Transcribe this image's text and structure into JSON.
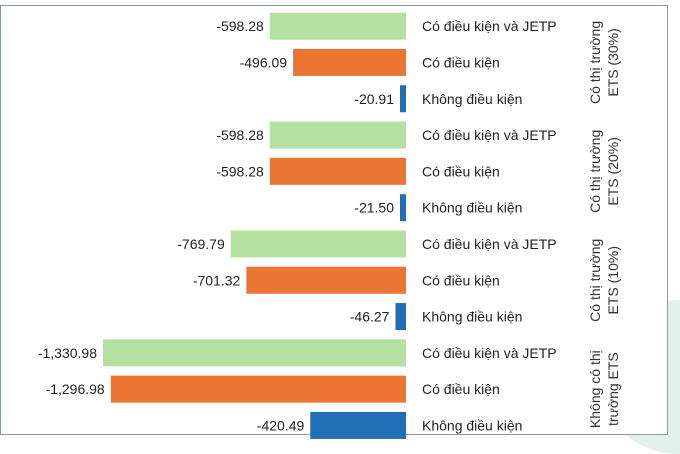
{
  "chart_data": {
    "type": "bar",
    "orientation": "horizontal",
    "title": "",
    "xlim": [
      -1330.98,
      0
    ],
    "colors": {
      "Có điều kiện và JETP": "#b4e0a0",
      "Có điều kiện": "#ec7533",
      "Không điều kiện": "#1f6fb5"
    },
    "groups": [
      {
        "label": [
          "Có thị trường",
          "ETS (30%)"
        ],
        "bars": [
          {
            "category": "Có điều kiện và JETP",
            "value": -598.28,
            "label": "-598.28"
          },
          {
            "category": "Có điều kiện",
            "value": -496.09,
            "label": "-496.09"
          },
          {
            "category": "Không điều kiện",
            "value": -20.91,
            "label": "-20.91"
          }
        ]
      },
      {
        "label": [
          "Có thị trường",
          "ETS (20%)"
        ],
        "bars": [
          {
            "category": "Có điều kiện và JETP",
            "value": -598.28,
            "label": "-598.28"
          },
          {
            "category": "Có điều kiện",
            "value": -598.28,
            "label": "-598.28"
          },
          {
            "category": "Không điều kiện",
            "value": -21.5,
            "label": "-21.50"
          }
        ]
      },
      {
        "label": [
          "Có thị trường",
          "ETS (10%)"
        ],
        "bars": [
          {
            "category": "Có điều kiện và JETP",
            "value": -769.79,
            "label": "-769.79"
          },
          {
            "category": "Có điều kiện",
            "value": -701.32,
            "label": "-701.32"
          },
          {
            "category": "Không điều kiện",
            "value": -46.27,
            "label": "-46.27"
          }
        ]
      },
      {
        "label": [
          "Không có thị",
          "trường ETS"
        ],
        "bars": [
          {
            "category": "Có điều kiện và JETP",
            "value": -1330.98,
            "label": "-1,330.98"
          },
          {
            "category": "Có điều kiện",
            "value": -1296.98,
            "label": "-1,296.98"
          },
          {
            "category": "Không điều kiện",
            "value": -420.49,
            "label": "-420.49"
          }
        ]
      }
    ]
  }
}
